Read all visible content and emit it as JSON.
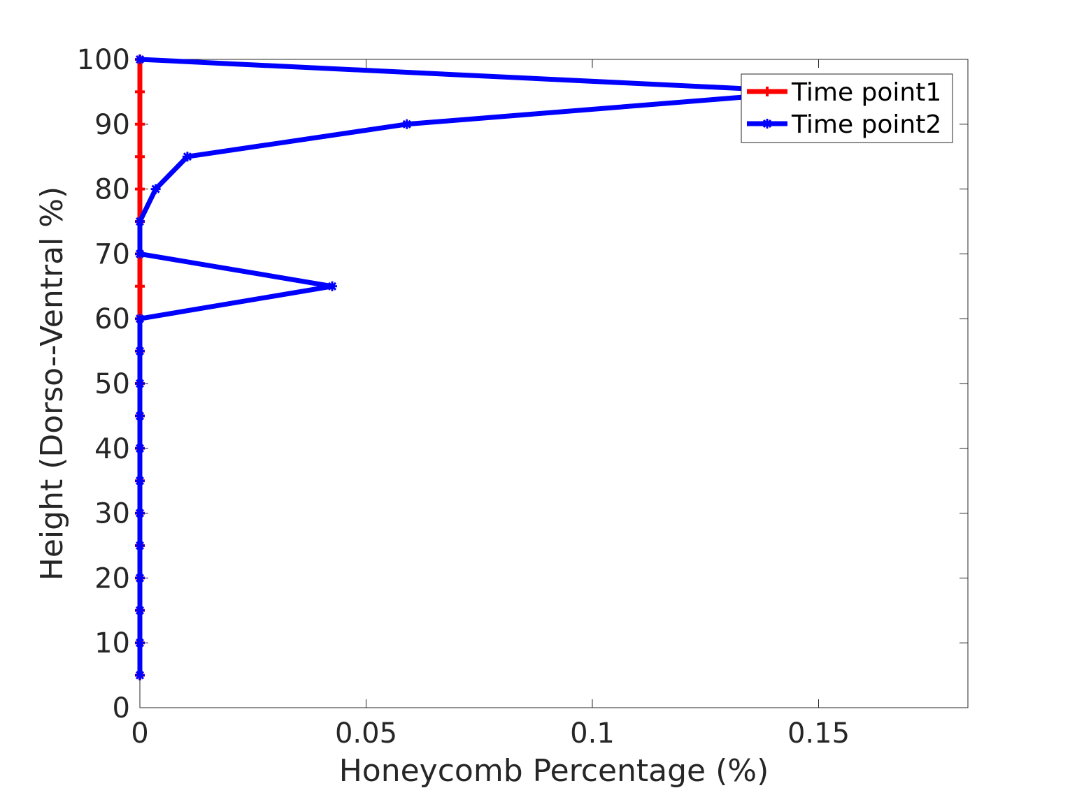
{
  "chart_data": {
    "type": "line",
    "xlabel": "Honeycomb Percentage (%)",
    "ylabel": "Height (Dorso--Ventral %)",
    "xlim": [
      0,
      0.183
    ],
    "ylim": [
      0,
      100
    ],
    "x_ticks": [
      0,
      0.05,
      0.1,
      0.15
    ],
    "x_tick_labels": [
      "0",
      "0.05",
      "0.1",
      "0.15"
    ],
    "y_ticks": [
      0,
      10,
      20,
      30,
      40,
      50,
      60,
      70,
      80,
      90,
      100
    ],
    "y_tick_labels": [
      "0",
      "10",
      "20",
      "30",
      "40",
      "50",
      "60",
      "70",
      "80",
      "90",
      "100"
    ],
    "legend_position": "top-right",
    "series": [
      {
        "name": "Time point1",
        "color": "#ff0000",
        "marker": "plus",
        "points": [
          [
            0,
            5
          ],
          [
            0,
            10
          ],
          [
            0,
            15
          ],
          [
            0,
            20
          ],
          [
            0,
            25
          ],
          [
            0,
            30
          ],
          [
            0,
            35
          ],
          [
            0,
            40
          ],
          [
            0,
            45
          ],
          [
            0,
            50
          ],
          [
            0,
            55
          ],
          [
            0,
            60
          ],
          [
            0,
            65
          ],
          [
            0,
            70
          ],
          [
            0,
            75
          ],
          [
            0,
            80
          ],
          [
            0,
            85
          ],
          [
            0,
            90
          ],
          [
            0,
            95
          ],
          [
            0,
            100
          ]
        ]
      },
      {
        "name": "Time point2",
        "color": "#0000ff",
        "marker": "star",
        "points": [
          [
            0,
            5
          ],
          [
            0,
            10
          ],
          [
            0,
            15
          ],
          [
            0,
            20
          ],
          [
            0,
            25
          ],
          [
            0,
            30
          ],
          [
            0,
            35
          ],
          [
            0,
            40
          ],
          [
            0,
            45
          ],
          [
            0,
            50
          ],
          [
            0,
            55
          ],
          [
            0,
            60
          ],
          [
            0.0425,
            65
          ],
          [
            0,
            70
          ],
          [
            0,
            75
          ],
          [
            0.0035,
            80
          ],
          [
            0.0105,
            85
          ],
          [
            0.059,
            90
          ],
          [
            0.148,
            95
          ],
          [
            0,
            100
          ]
        ]
      }
    ]
  }
}
